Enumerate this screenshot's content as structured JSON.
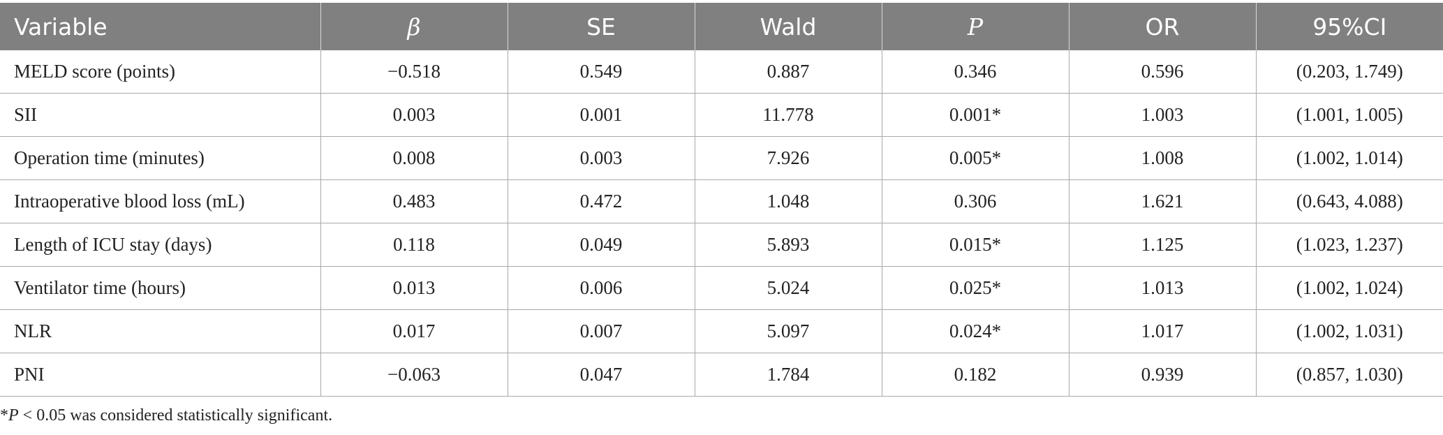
{
  "table": {
    "headers": [
      "Variable",
      "β",
      "SE",
      "Wald",
      "P",
      "OR",
      "95%CI"
    ],
    "rows": [
      [
        "MELD score (points)",
        "−0.518",
        "0.549",
        "0.887",
        "0.346",
        "0.596",
        "(0.203, 1.749)"
      ],
      [
        "SII",
        "0.003",
        "0.001",
        "11.778",
        "0.001*",
        "1.003",
        "(1.001, 1.005)"
      ],
      [
        "Operation time (minutes)",
        "0.008",
        "0.003",
        "7.926",
        "0.005*",
        "1.008",
        "(1.002, 1.014)"
      ],
      [
        "Intraoperative blood loss (mL)",
        "0.483",
        "0.472",
        "1.048",
        "0.306",
        "1.621",
        "(0.643, 4.088)"
      ],
      [
        "Length of ICU stay (days)",
        "0.118",
        "0.049",
        "5.893",
        "0.015*",
        "1.125",
        "(1.023, 1.237)"
      ],
      [
        "Ventilator time (hours)",
        "0.013",
        "0.006",
        "5.024",
        "0.025*",
        "1.013",
        "(1.002, 1.024)"
      ],
      [
        "NLR",
        "0.017",
        "0.007",
        "5.097",
        "0.024*",
        "1.017",
        "(1.002, 1.031)"
      ],
      [
        "PNI",
        "−0.063",
        "0.047",
        "1.784",
        "0.182",
        "0.939",
        "(0.857, 1.030)"
      ]
    ]
  },
  "footnote": {
    "marker": "*",
    "var": "P",
    "text": " < 0.05 was considered statistically significant."
  }
}
